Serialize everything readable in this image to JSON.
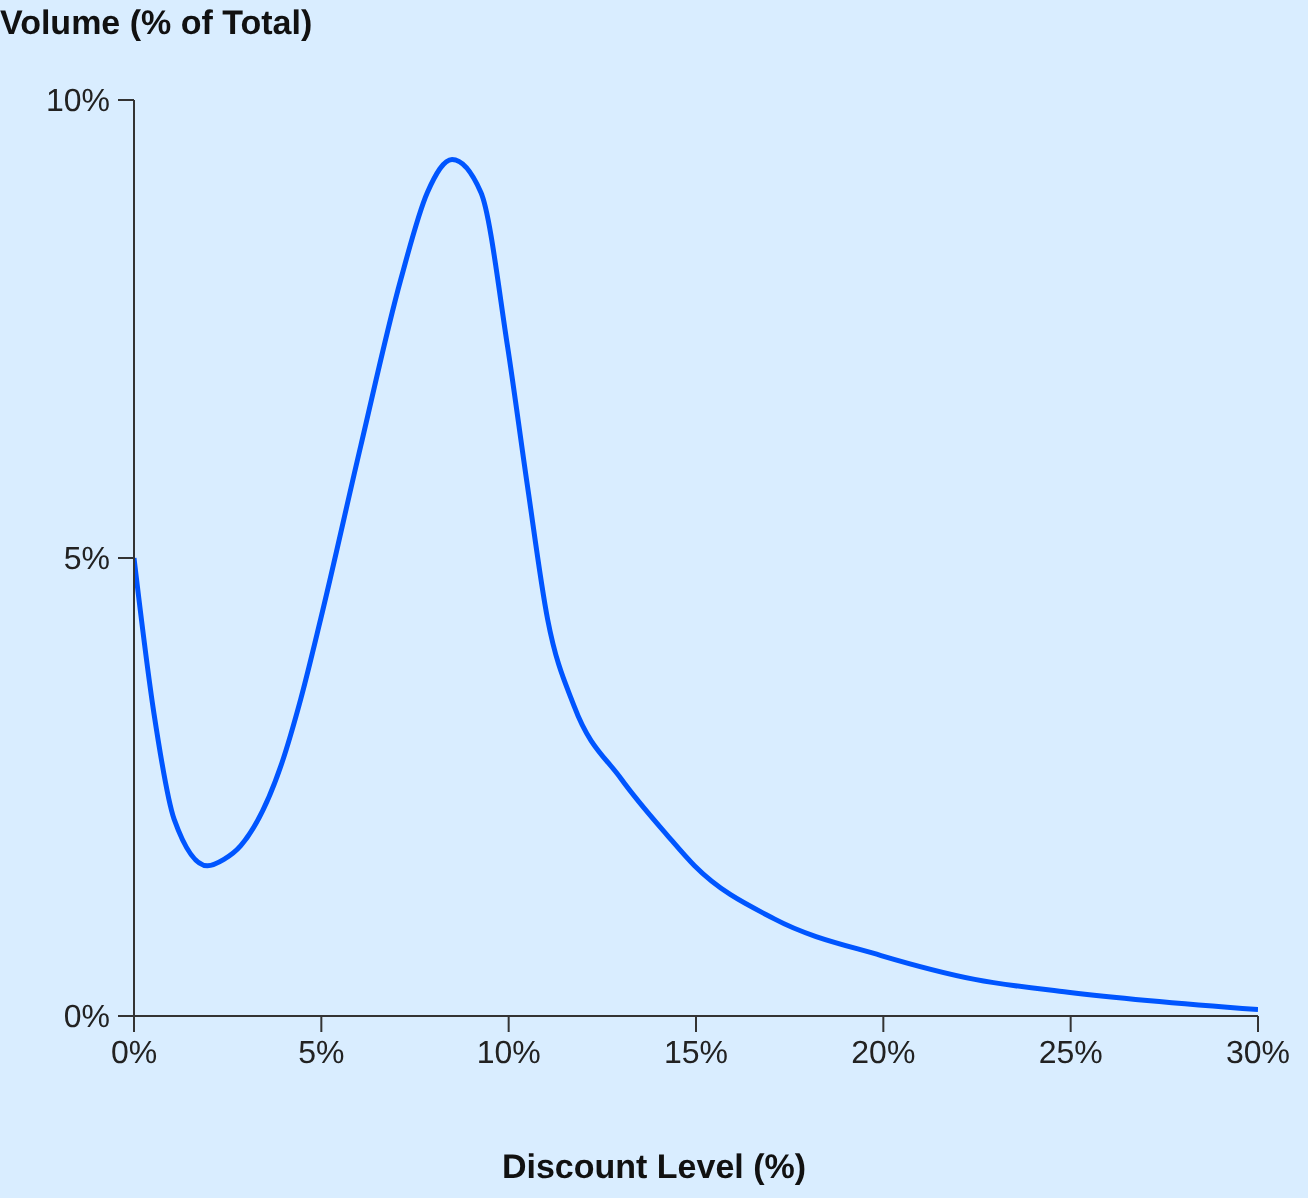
{
  "chart_data": {
    "type": "line",
    "title": "Volume (% of Total)",
    "xlabel": "Discount Level (%)",
    "x": [
      0,
      0.53,
      1.07,
      1.96,
      2.4,
      2.85,
      3.92,
      4.45,
      4.98,
      6.05,
      7.12,
      7.83,
      8.49,
      9.26,
      9.97,
      10.5,
      11.04,
      11.75,
      13.0,
      14.24,
      14.96,
      17.09,
      19.94,
      22.44,
      24.93,
      30
    ],
    "series": [
      {
        "color": "#0055ff",
        "values": [
          5.0,
          3.31,
          2.15,
          1.64,
          1.71,
          1.86,
          2.73,
          3.46,
          4.33,
          6.22,
          8.04,
          8.99,
          9.35,
          8.99,
          7.31,
          5.79,
          4.33,
          3.38,
          2.59,
          1.97,
          1.64,
          1.06,
          0.66,
          0.4,
          0.26,
          0.07
        ]
      }
    ],
    "xlim": [
      0,
      30
    ],
    "xticks": [
      {
        "value": 0,
        "label": "0%"
      },
      {
        "value": 5,
        "label": "5%"
      },
      {
        "value": 10,
        "label": "10%"
      },
      {
        "value": 15,
        "label": "15%"
      },
      {
        "value": 20,
        "label": "20%"
      },
      {
        "value": 25,
        "label": "25%"
      },
      {
        "value": 30,
        "label": "30%"
      }
    ],
    "ylim": [
      0,
      10
    ],
    "yticks": [
      {
        "value": 0,
        "label": "0%"
      },
      {
        "value": 5,
        "label": "5%"
      },
      {
        "value": 10,
        "label": "10%"
      }
    ],
    "grid": false,
    "legend": false,
    "marker": "none",
    "line_style": "solid"
  }
}
